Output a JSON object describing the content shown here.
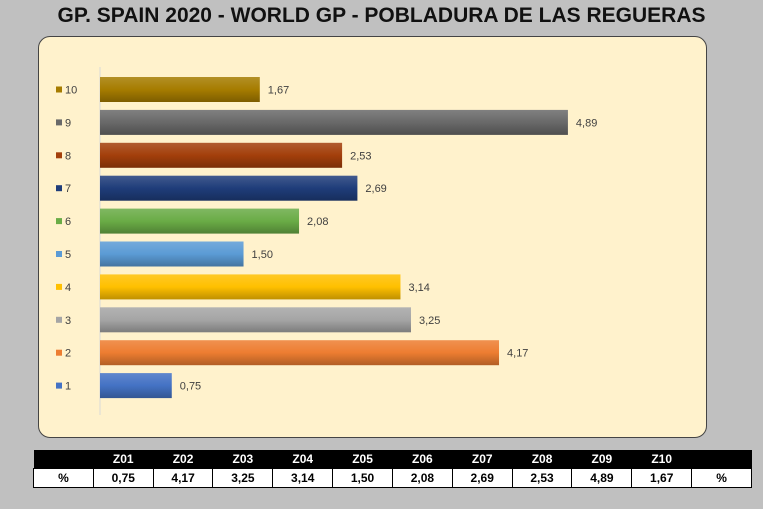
{
  "title": "GP. SPAIN 2020 - WORLD GP - POBLADURA DE LAS REGUERAS",
  "chart_data": {
    "type": "bar",
    "orientation": "horizontal",
    "categories": [
      "10",
      "9",
      "8",
      "7",
      "6",
      "5",
      "4",
      "3",
      "2",
      "1"
    ],
    "values": [
      1.67,
      4.89,
      2.53,
      2.69,
      2.08,
      1.5,
      3.14,
      3.25,
      4.17,
      0.75
    ],
    "value_labels": [
      "1,67",
      "4,89",
      "2,53",
      "2,69",
      "2,08",
      "1,50",
      "3,14",
      "3,25",
      "4,17",
      "0,75"
    ],
    "colors": [
      "#a67c00",
      "#696969",
      "#a33f0b",
      "#1f3d7a",
      "#6aac46",
      "#5b9bd5",
      "#ffc000",
      "#a5a5a5",
      "#ed7d31",
      "#4472c4"
    ],
    "xlim": [
      0,
      5.8
    ],
    "grid": false,
    "legend": "none"
  },
  "table": {
    "headers": [
      "",
      "Z01",
      "Z02",
      "Z03",
      "Z04",
      "Z05",
      "Z06",
      "Z07",
      "Z08",
      "Z09",
      "Z10",
      ""
    ],
    "row": [
      "%",
      "0,75",
      "4,17",
      "3,25",
      "3,14",
      "1,50",
      "2,08",
      "2,69",
      "2,53",
      "4,89",
      "1,67",
      "%"
    ]
  }
}
